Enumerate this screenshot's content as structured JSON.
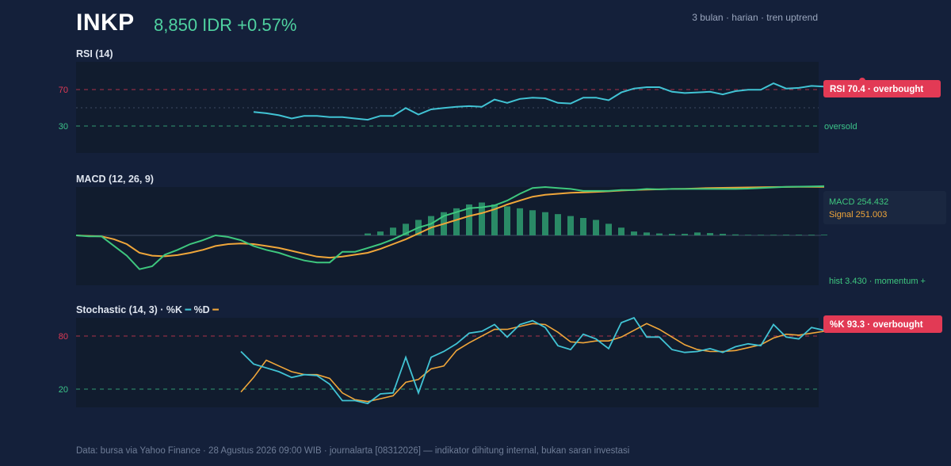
{
  "header": {
    "ticker": "INKP",
    "price": "8,850 IDR +0.57%",
    "meta": "3 bulan · harian · tren uptrend"
  },
  "footer": "Data: bursa via Yahoo Finance · 28 Agustus 2026 09:00 WIB · journalarta [08312026] — indikator dihitung internal, bukan saran investasi",
  "colors": {
    "background": "#14203a",
    "panel": "#111c2e",
    "rsi_line": "#41c3d4",
    "macd_line": "#3ec77e",
    "signal_line": "#f0a63a",
    "histogram": "#2a8a66",
    "k_line": "#41c3d4",
    "d_line": "#f0a63a",
    "overbought": "#e23a55",
    "oversold": "#3cc48a"
  },
  "panels": {
    "rsi": {
      "title": "RSI (14)",
      "tick_high": "70",
      "tick_low": "30",
      "callout": "RSI 70.4 · overbought",
      "oversold_label": "oversold"
    },
    "macd": {
      "title": "MACD (12, 26, 9)",
      "macd_value": "MACD 254.432",
      "signal_value": "Signal 251.003",
      "hist_label": "hist 3.430 · momentum +"
    },
    "stoch": {
      "title": "Stochastic (14, 3) · %K",
      "legend_d": "%D",
      "tick_high": "80",
      "tick_low": "20",
      "callout": "%K 93.3 · overbought"
    }
  },
  "chart_data": [
    {
      "type": "line",
      "panel": "rsi",
      "ylim": [
        15,
        85
      ],
      "reference_lines": [
        70,
        50,
        30
      ],
      "series": [
        {
          "start_index": 14,
          "values": [
            46.5,
            45.5,
            44.0,
            41.5,
            43.5,
            43.5,
            42.5,
            42.5,
            41.5,
            40.5,
            43.5,
            43.5,
            49.5,
            44.5,
            48.5,
            49.5,
            50.5,
            51.0,
            50.5,
            56.0,
            53.5,
            56.5,
            57.5,
            57.0,
            53.5,
            53.0,
            57.5,
            57.5,
            55.5,
            61.5,
            64.5,
            65.5,
            65.5,
            62.0,
            61.0,
            61.5,
            62.0,
            60.0,
            62.5,
            63.5,
            63.5,
            68.5,
            64.5,
            65.0,
            66.5,
            66.0,
            66.5,
            68.5,
            70.4
          ]
        }
      ]
    },
    {
      "type": "line",
      "panel": "macd",
      "ylim": [
        -250,
        250
      ],
      "series": [
        {
          "values": [
            0,
            -5,
            -5,
            -55,
            -105,
            -175,
            -160,
            -100,
            -75,
            -45,
            -25,
            0,
            -8,
            -25,
            -55,
            -75,
            -90,
            -112,
            -130,
            -140,
            -140,
            -85,
            -85,
            -65,
            -45,
            -20,
            10,
            40,
            60,
            100,
            120,
            140,
            145,
            155,
            180,
            215,
            245,
            250,
            245,
            240,
            230,
            230,
            230,
            235,
            235,
            240,
            238,
            240,
            240,
            240,
            240,
            240,
            240,
            242,
            245,
            248,
            251,
            252,
            253,
            254.432
          ]
        },
        {
          "values": [
            0,
            -3,
            -5,
            -20,
            -45,
            -90,
            -105,
            -108,
            -102,
            -90,
            -75,
            -55,
            -45,
            -42,
            -45,
            -55,
            -65,
            -80,
            -95,
            -110,
            -115,
            -110,
            -100,
            -90,
            -70,
            -45,
            -20,
            10,
            40,
            60,
            80,
            100,
            115,
            135,
            160,
            180,
            200,
            210,
            215,
            220,
            222,
            225,
            228,
            232,
            235,
            237,
            238,
            240,
            241,
            243,
            245,
            246,
            247,
            248,
            249,
            250,
            250.5,
            250.8,
            251.0,
            251.003
          ]
        },
        {
          "values": [
            0,
            0,
            0,
            0,
            0,
            0,
            0,
            0,
            0,
            0,
            0,
            0,
            0,
            0,
            0,
            0,
            0,
            0,
            0,
            0,
            0,
            0,
            0,
            10,
            20,
            40,
            60,
            80,
            100,
            120,
            140,
            160,
            170,
            160,
            150,
            140,
            130,
            120,
            110,
            100,
            90,
            80,
            60,
            40,
            20,
            15,
            10,
            8,
            8,
            15,
            12,
            8,
            5,
            3,
            3,
            3,
            3.43,
            3.43,
            3.43,
            3.43
          ]
        }
      ]
    },
    {
      "type": "line",
      "panel": "stoch",
      "ylim": [
        5,
        98
      ],
      "reference_lines": [
        80,
        20
      ],
      "series": [
        {
          "start_index": 13,
          "values": [
            63,
            50,
            46,
            42,
            36,
            39,
            38,
            29,
            12,
            12,
            9,
            19,
            20,
            57,
            20,
            57,
            63,
            71,
            82,
            84,
            91,
            78,
            91,
            95,
            88,
            69,
            65,
            81,
            76,
            66,
            93,
            98,
            78,
            78,
            65,
            62,
            63,
            66,
            62,
            68,
            71,
            69,
            91,
            78,
            76,
            88,
            85,
            84,
            88,
            93.3
          ]
        },
        {
          "start_index": 13,
          "values": [
            21,
            36,
            54,
            48,
            42,
            39,
            39,
            35,
            20,
            13,
            11,
            14,
            17,
            31,
            34,
            45,
            48,
            64,
            72,
            79,
            86,
            86,
            89,
            92,
            91,
            83,
            73,
            72,
            74,
            74,
            78,
            85,
            92,
            86,
            78,
            70,
            65,
            63,
            63,
            64,
            67,
            70,
            77,
            81,
            80,
            82,
            84,
            85,
            86,
            90
          ]
        }
      ]
    }
  ]
}
